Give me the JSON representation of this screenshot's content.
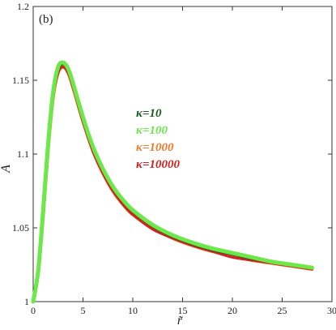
{
  "chart_data": {
    "type": "line",
    "panel_label": "(b)",
    "xlabel": "r̃",
    "ylabel": "A",
    "xlim": [
      0,
      30
    ],
    "ylim": [
      1.0,
      1.2
    ],
    "x_ticks": [
      0,
      5,
      10,
      15,
      20,
      25,
      30
    ],
    "x_tick_labels": [
      "0",
      "5",
      "10",
      "15",
      "20",
      "25",
      "30"
    ],
    "y_ticks": [
      1.0,
      1.05,
      1.1,
      1.15,
      1.2
    ],
    "y_tick_labels": [
      "1",
      "1.05",
      "1.1",
      "1.15",
      "1.2"
    ],
    "grid": false,
    "legend_position": "center-right",
    "x": [
      0,
      0.5,
      1,
      1.5,
      2,
      2.5,
      3,
      3.5,
      4,
      5,
      6,
      7,
      8,
      9,
      10,
      12,
      14,
      16,
      18,
      20,
      22,
      24,
      26,
      28
    ],
    "series": [
      {
        "name": "κ=10",
        "color": "#1f5a1f",
        "values": [
          1.0,
          1.02,
          1.06,
          1.105,
          1.14,
          1.157,
          1.161,
          1.157,
          1.147,
          1.124,
          1.104,
          1.089,
          1.077,
          1.068,
          1.061,
          1.051,
          1.044,
          1.039,
          1.035,
          1.032,
          1.029,
          1.027,
          1.025,
          1.023
        ]
      },
      {
        "name": "κ=100",
        "color": "#6be84a",
        "values": [
          1.0,
          1.021,
          1.062,
          1.107,
          1.142,
          1.159,
          1.162,
          1.158,
          1.148,
          1.125,
          1.105,
          1.09,
          1.078,
          1.069,
          1.062,
          1.052,
          1.045,
          1.04,
          1.036,
          1.033,
          1.03,
          1.027,
          1.025,
          1.023
        ]
      },
      {
        "name": "κ=1000",
        "color": "#f07a2a",
        "values": [
          1.0,
          1.019,
          1.058,
          1.103,
          1.138,
          1.155,
          1.159,
          1.155,
          1.145,
          1.122,
          1.102,
          1.087,
          1.075,
          1.066,
          1.059,
          1.05,
          1.043,
          1.038,
          1.034,
          1.031,
          1.028,
          1.026,
          1.024,
          1.022
        ]
      },
      {
        "name": "κ=10000",
        "color": "#d42020",
        "values": [
          1.0,
          1.019,
          1.058,
          1.103,
          1.138,
          1.155,
          1.159,
          1.155,
          1.145,
          1.122,
          1.102,
          1.087,
          1.075,
          1.066,
          1.059,
          1.049,
          1.043,
          1.038,
          1.034,
          1.03,
          1.028,
          1.026,
          1.024,
          1.022
        ]
      }
    ]
  }
}
